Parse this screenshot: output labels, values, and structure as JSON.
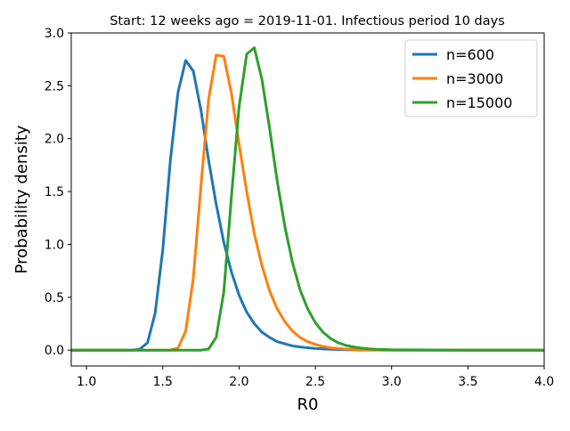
{
  "chart_data": {
    "type": "line",
    "title": "Start: 12 weeks ago = 2019-11-01. Infectious period 10 days",
    "xlabel": "R0",
    "ylabel": "Probability density",
    "xlim": [
      0.9,
      4.0
    ],
    "ylim": [
      -0.15,
      3.0
    ],
    "grid": false,
    "legend_position": "top-right",
    "x_ticks": [
      1.0,
      1.5,
      2.0,
      2.5,
      3.0,
      3.5,
      4.0
    ],
    "x_tick_labels": [
      "1.0",
      "1.5",
      "2.0",
      "2.5",
      "3.0",
      "3.5",
      "4.0"
    ],
    "y_ticks": [
      0.0,
      0.5,
      1.0,
      1.5,
      2.0,
      2.5,
      3.0
    ],
    "y_tick_labels": [
      "0.0",
      "0.5",
      "1.0",
      "1.5",
      "2.0",
      "2.5",
      "3.0"
    ],
    "series": [
      {
        "name": "n=600",
        "color": "#1f77b4",
        "x": [
          0.9,
          1.0,
          1.1,
          1.2,
          1.3,
          1.35,
          1.4,
          1.45,
          1.5,
          1.55,
          1.6,
          1.65,
          1.7,
          1.75,
          1.8,
          1.85,
          1.9,
          1.95,
          2.0,
          2.05,
          2.1,
          2.15,
          2.2,
          2.25,
          2.3,
          2.35,
          2.4,
          2.5,
          2.6,
          2.7,
          2.8,
          3.0,
          3.5,
          4.0
        ],
        "y": [
          0.0,
          0.0,
          0.0,
          0.0,
          0.0,
          0.01,
          0.07,
          0.35,
          0.95,
          1.8,
          2.44,
          2.74,
          2.64,
          2.27,
          1.8,
          1.38,
          1.02,
          0.74,
          0.52,
          0.36,
          0.25,
          0.17,
          0.12,
          0.08,
          0.06,
          0.04,
          0.03,
          0.015,
          0.008,
          0.004,
          0.002,
          0.0,
          0.0,
          0.0
        ]
      },
      {
        "name": "n=3000",
        "color": "#ff7f0e",
        "x": [
          0.9,
          1.0,
          1.2,
          1.4,
          1.5,
          1.55,
          1.6,
          1.65,
          1.7,
          1.75,
          1.8,
          1.85,
          1.9,
          1.95,
          2.0,
          2.05,
          2.1,
          2.15,
          2.2,
          2.25,
          2.3,
          2.35,
          2.4,
          2.45,
          2.5,
          2.55,
          2.6,
          2.7,
          2.8,
          2.9,
          3.0,
          3.5,
          4.0
        ],
        "y": [
          0.0,
          0.0,
          0.0,
          0.0,
          0.0,
          0.0,
          0.02,
          0.18,
          0.68,
          1.55,
          2.37,
          2.79,
          2.78,
          2.43,
          1.95,
          1.5,
          1.1,
          0.8,
          0.56,
          0.39,
          0.27,
          0.18,
          0.12,
          0.08,
          0.055,
          0.035,
          0.022,
          0.01,
          0.005,
          0.002,
          0.001,
          0.0,
          0.0
        ]
      },
      {
        "name": "n=15000",
        "color": "#2ca02c",
        "x": [
          0.9,
          1.0,
          1.2,
          1.4,
          1.6,
          1.7,
          1.75,
          1.8,
          1.85,
          1.9,
          1.95,
          2.0,
          2.05,
          2.1,
          2.15,
          2.2,
          2.25,
          2.3,
          2.35,
          2.4,
          2.45,
          2.5,
          2.55,
          2.6,
          2.65,
          2.7,
          2.75,
          2.8,
          2.85,
          2.9,
          3.0,
          3.5,
          4.0
        ],
        "y": [
          0.0,
          0.0,
          0.0,
          0.0,
          0.0,
          0.0,
          0.0,
          0.01,
          0.12,
          0.55,
          1.45,
          2.3,
          2.8,
          2.86,
          2.56,
          2.1,
          1.6,
          1.17,
          0.83,
          0.57,
          0.39,
          0.26,
          0.17,
          0.11,
          0.07,
          0.045,
          0.03,
          0.02,
          0.012,
          0.008,
          0.004,
          0.0,
          0.0
        ]
      }
    ]
  }
}
